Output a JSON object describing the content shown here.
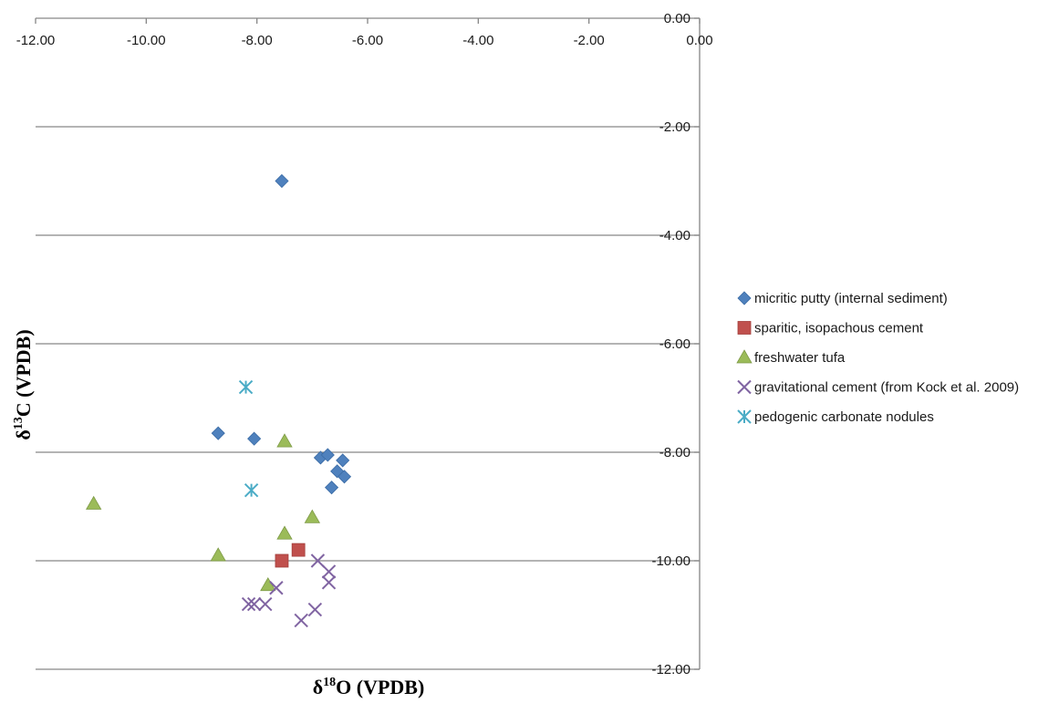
{
  "chart_data": {
    "type": "scatter",
    "xlabel": "δ18O (VPDB)",
    "ylabel": "δ13C (VPDB)",
    "xlabel_parts": {
      "symbol": "δ",
      "sup": "18",
      "base": "O (VPDB)"
    },
    "ylabel_parts": {
      "symbol": "δ",
      "sup": "13",
      "base": "C (VPDB)"
    },
    "xlim": [
      -12,
      0
    ],
    "ylim": [
      -12,
      0
    ],
    "x_ticks": [
      -12,
      -10,
      -8,
      -6,
      -4,
      -2,
      0
    ],
    "y_ticks": [
      0,
      -2,
      -4,
      -6,
      -8,
      -10,
      -12
    ],
    "x_tick_labels": [
      "-12.00",
      "-10.00",
      "-8.00",
      "-6.00",
      "-4.00",
      "-2.00",
      "0.00"
    ],
    "y_tick_labels": [
      "0.00",
      "-2.00",
      "-4.00",
      "-6.00",
      "-8.00",
      "-10.00",
      "-12.00"
    ],
    "x_axis_position": "top",
    "y_axis_position": "right",
    "grid": "horizontal",
    "legend_position": "right",
    "series": [
      {
        "name": "micritic putty (internal sediment)",
        "marker": "diamond",
        "color": "#4F81BD",
        "points": [
          [
            -7.55,
            -3.0
          ],
          [
            -8.7,
            -7.65
          ],
          [
            -8.05,
            -7.75
          ],
          [
            -6.85,
            -8.1
          ],
          [
            -6.72,
            -8.05
          ],
          [
            -6.45,
            -8.15
          ],
          [
            -6.55,
            -8.35
          ],
          [
            -6.42,
            -8.45
          ],
          [
            -6.65,
            -8.65
          ]
        ]
      },
      {
        "name": "sparitic, isopachous cement",
        "marker": "square",
        "color": "#C0504D",
        "points": [
          [
            -7.55,
            -10.0
          ],
          [
            -7.25,
            -9.8
          ]
        ]
      },
      {
        "name": "freshwater tufa",
        "marker": "triangle",
        "color": "#9BBB59",
        "points": [
          [
            -10.95,
            -8.95
          ],
          [
            -7.5,
            -7.8
          ],
          [
            -7.0,
            -9.2
          ],
          [
            -7.5,
            -9.5
          ],
          [
            -8.7,
            -9.9
          ],
          [
            -7.8,
            -10.45
          ]
        ]
      },
      {
        "name": "gravitational cement (from Kock et al. 2009)",
        "marker": "x",
        "color": "#8064A2",
        "points": [
          [
            -6.9,
            -10.0
          ],
          [
            -6.7,
            -10.2
          ],
          [
            -6.7,
            -10.4
          ],
          [
            -7.65,
            -10.5
          ],
          [
            -8.15,
            -10.8
          ],
          [
            -8.05,
            -10.8
          ],
          [
            -7.85,
            -10.8
          ],
          [
            -6.95,
            -10.9
          ],
          [
            -7.2,
            -11.1
          ]
        ]
      },
      {
        "name": "pedogenic carbonate nodules",
        "marker": "asterisk",
        "color": "#4BACC6",
        "points": [
          [
            -8.2,
            -6.8
          ],
          [
            -8.1,
            -8.7
          ]
        ]
      }
    ]
  },
  "colors": {
    "gridline": "#868686",
    "axis": "#868686",
    "text": "#1a1a1a",
    "background": "#ffffff"
  }
}
